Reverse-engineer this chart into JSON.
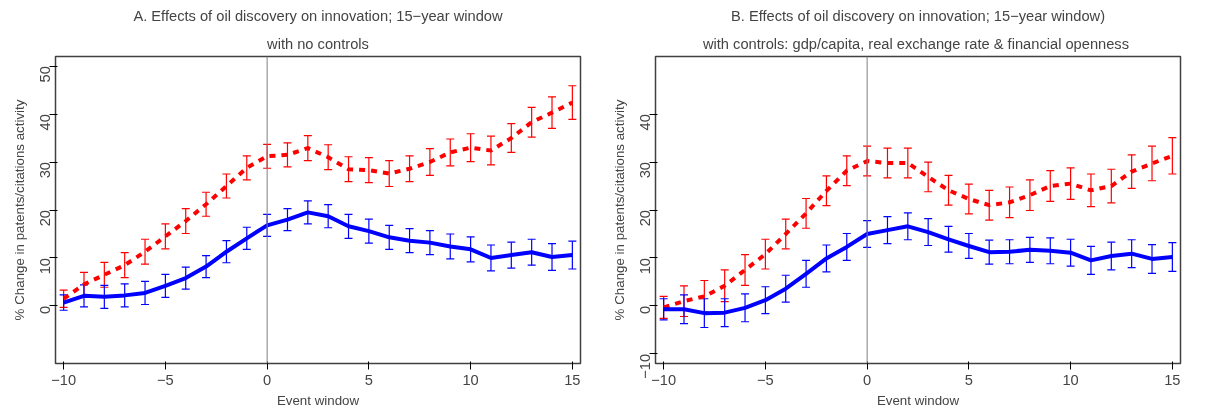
{
  "chart_data": [
    {
      "type": "line",
      "title": "A. Effects of oil discovery on innovation; 15−year window",
      "subtitle": "with no controls",
      "xlabel": "Event window",
      "ylabel": "% Change in patents/citations activity",
      "x": [
        -10,
        -9,
        -8,
        -7,
        -6,
        -5,
        -4,
        -3,
        -2,
        -1,
        0,
        1,
        2,
        3,
        4,
        5,
        6,
        7,
        8,
        9,
        10,
        11,
        12,
        13,
        14,
        15
      ],
      "series": [
        {
          "color": "#ff0000",
          "line_style": "dashed",
          "values": [
            1.5,
            4.5,
            6.5,
            8.5,
            11.3,
            14.5,
            17.7,
            21.2,
            25,
            28.8,
            31.2,
            31.5,
            32.9,
            31,
            28.5,
            28.3,
            27.6,
            28.6,
            30,
            32,
            33,
            32.4,
            35,
            38.3,
            40.3,
            42.4
          ],
          "errors": [
            1.8,
            2.5,
            2.6,
            2.6,
            2.6,
            2.6,
            2.6,
            2.5,
            2.5,
            2.5,
            2.5,
            2.5,
            2.6,
            2.6,
            2.6,
            2.6,
            2.7,
            2.7,
            2.8,
            2.8,
            2.9,
            3,
            3,
            3.1,
            3.3,
            3.5
          ]
        },
        {
          "color": "#0000ff",
          "line_style": "solid",
          "values": [
            0.7,
            2.1,
            1.9,
            2.2,
            2.7,
            4.2,
            5.8,
            8.2,
            11.3,
            14.1,
            16.8,
            18,
            19.5,
            18.7,
            16.6,
            15.6,
            14.3,
            13.6,
            13.2,
            12.4,
            11.8,
            10,
            10.6,
            11.2,
            10.2,
            10.6
          ],
          "errors": [
            1.6,
            2.3,
            2.4,
            2.4,
            2.4,
            2.4,
            2.3,
            2.3,
            2.3,
            2.3,
            2.3,
            2.3,
            2.4,
            2.4,
            2.5,
            2.5,
            2.5,
            2.5,
            2.5,
            2.6,
            2.6,
            2.7,
            2.7,
            2.7,
            2.8,
            2.9
          ]
        }
      ],
      "xlim": [
        -10.4,
        15.4
      ],
      "ylim": [
        -12,
        52
      ],
      "xticks": [
        -10,
        -5,
        0,
        5,
        10,
        15
      ],
      "yticks": [
        0,
        10,
        20,
        30,
        40,
        50
      ],
      "ref_lines": [
        {
          "axis": "x",
          "value": 0,
          "color": "#808080"
        }
      ],
      "grid": false,
      "marker": "none"
    },
    {
      "type": "line",
      "title": "B. Effects of oil discovery on innovation; 15−year window)",
      "subtitle": "with controls: gdp/capita,  real exchange rate & financial openness",
      "xlabel": "Event window",
      "ylabel": "% Change in patents/citations activity",
      "x": [
        -10,
        -9,
        -8,
        -7,
        -6,
        -5,
        -4,
        -3,
        -2,
        -1,
        0,
        1,
        2,
        3,
        4,
        5,
        6,
        7,
        8,
        9,
        10,
        11,
        12,
        13,
        14,
        15
      ],
      "series": [
        {
          "color": "#ff0000",
          "line_style": "dashed",
          "values": [
            -0.3,
            1,
            2,
            4.2,
            7.5,
            10.8,
            15,
            19.3,
            24,
            28.2,
            30.2,
            29.8,
            29.8,
            26.9,
            24.1,
            22.3,
            21,
            21.6,
            23.1,
            25,
            25.5,
            24.1,
            25,
            28,
            29.7,
            31.3
          ],
          "errors": [
            2.3,
            3.2,
            3.3,
            3.3,
            3.2,
            3.1,
            3.1,
            3.1,
            3.1,
            3.1,
            3.1,
            3.1,
            3.1,
            3.1,
            3.1,
            3.1,
            3.1,
            3.2,
            3.2,
            3.2,
            3.3,
            3.4,
            3.5,
            3.5,
            3.6,
            3.8
          ]
        },
        {
          "color": "#0000ff",
          "line_style": "solid",
          "values": [
            -0.7,
            -0.7,
            -1.5,
            -1.4,
            -0.4,
            1.2,
            3.6,
            6.7,
            9.9,
            12.3,
            15,
            15.8,
            16.6,
            15.4,
            13.9,
            12.5,
            11.2,
            11.3,
            11.7,
            11.5,
            11.1,
            9.5,
            10.4,
            10.9,
            9.8,
            10.2
          ],
          "errors": [
            2.2,
            3,
            3,
            2.9,
            2.9,
            2.8,
            2.8,
            2.8,
            2.8,
            2.8,
            2.8,
            2.8,
            2.8,
            2.8,
            2.7,
            2.6,
            2.5,
            2.5,
            2.6,
            2.7,
            2.8,
            2.9,
            2.9,
            2.9,
            3,
            3
          ]
        }
      ],
      "xlim": [
        -10.4,
        15.4
      ],
      "ylim": [
        -12,
        52
      ],
      "xticks": [
        -10,
        -5,
        0,
        5,
        10,
        15
      ],
      "yticks": [
        -10,
        0,
        10,
        20,
        30,
        40
      ],
      "ref_lines": [
        {
          "axis": "x",
          "value": 0,
          "color": "#808080"
        }
      ],
      "grid": false,
      "marker": "none"
    }
  ]
}
